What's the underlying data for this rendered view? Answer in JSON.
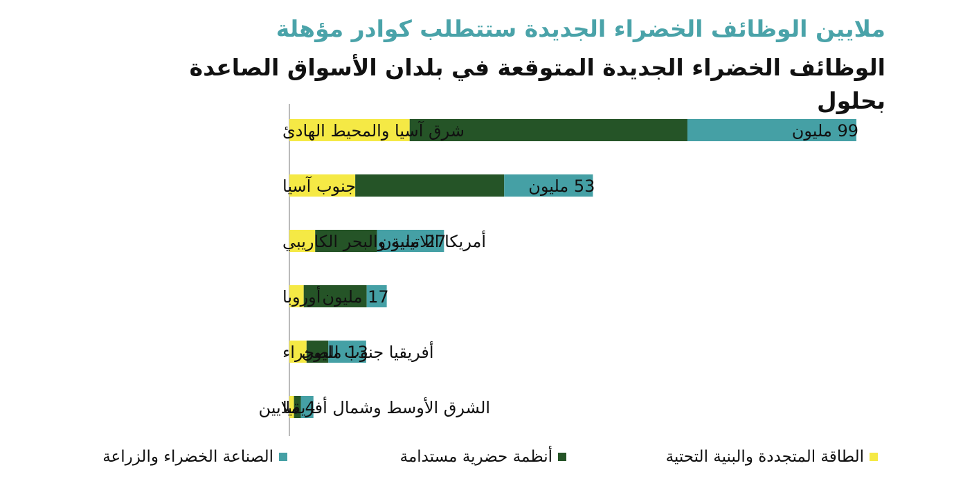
{
  "title": "ملايين الوظائف الخضراء الجديدة ستتطلب كوادر مؤهلة",
  "subtitle": "الوظائف الخضراء الجديدة المتوقعة في بلدان الأسواق الصاعدة بحلول",
  "colors": {
    "title": "#4aa3a9",
    "renewable": "#f5e945",
    "urban": "#255427",
    "industry": "#45a0a5",
    "axis": "#bbbbbb"
  },
  "chart_data": {
    "type": "bar",
    "orientation": "horizontal",
    "stacked": true,
    "categories": [
      "شرق آسيا والمحيط الهادئ",
      "جنوب آسيا",
      "أمريكا اللاتينية والبحر الكاريبي",
      "أوروبا",
      "أفريقيا جنوب الصحراء",
      "الشرق الأوسط وشمال أفريقيا"
    ],
    "series": [
      {
        "name": "الطاقة المتجددة والبنية التحتية",
        "values": [
          21,
          11.5,
          4.5,
          2.5,
          3,
          0.8
        ]
      },
      {
        "name": "أنظمة حضرية مستدامة",
        "values": [
          48.5,
          26,
          10.8,
          11,
          3.8,
          1.2
        ]
      },
      {
        "name": "الصناعة الخضراء والزراعة",
        "values": [
          29.5,
          15.5,
          11.7,
          3.5,
          6.6,
          2.2
        ]
      }
    ],
    "total_labels": [
      "99 مليون",
      "53 مليون",
      "27 مليون",
      "17 مليون",
      "13 مليون",
      "4 ملايين"
    ],
    "xlim": [
      0,
      110
    ],
    "grid": false,
    "legend_position": "bottom"
  }
}
